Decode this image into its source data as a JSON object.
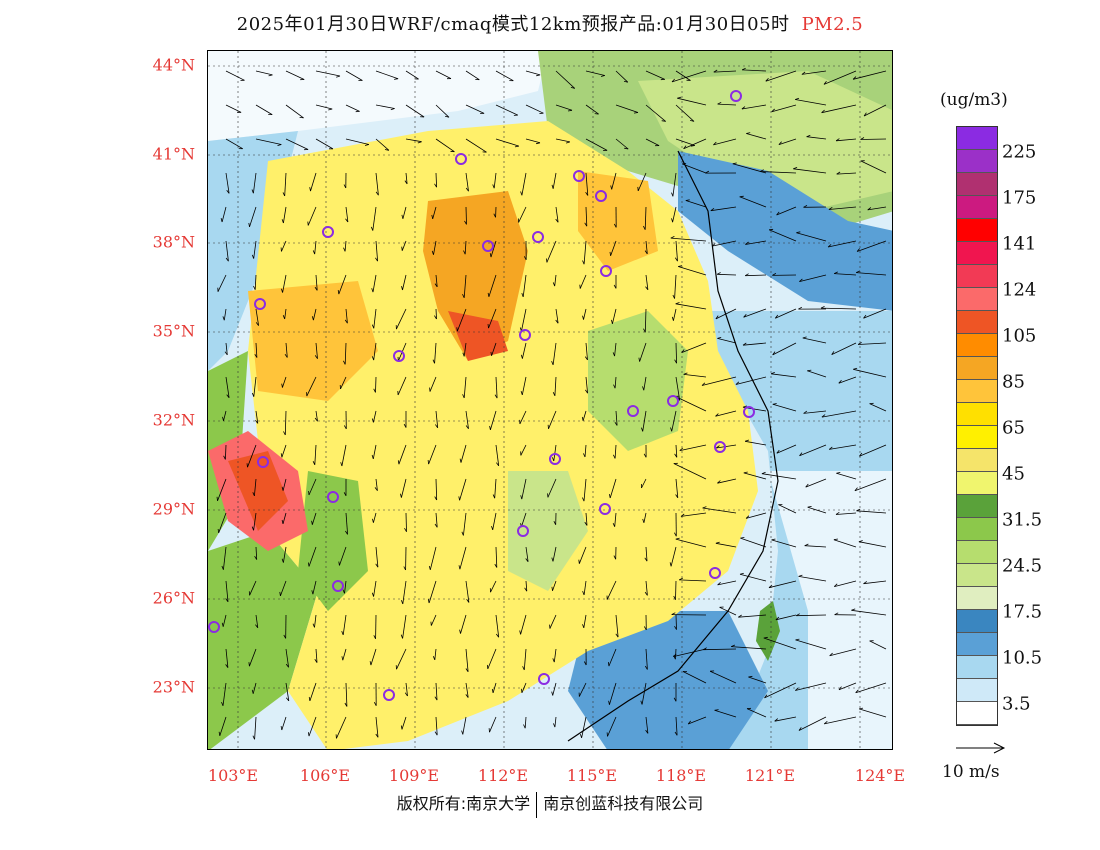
{
  "title": {
    "main": "2025年01月30日WRF/cmaq模式12km预报产品:01月30日05时",
    "pollutant": "PM2.5"
  },
  "map": {
    "lat_labels": [
      "44°N",
      "41°N",
      "38°N",
      "35°N",
      "32°N",
      "29°N",
      "26°N",
      "23°N"
    ],
    "lon_labels": [
      "103°E",
      "106°E",
      "109°E",
      "112°E",
      "115°E",
      "118°E",
      "121°E",
      "124°E"
    ],
    "station_marker": "purple-circle",
    "wind_arrow_color": "#000000"
  },
  "colorbar": {
    "unit": "(ug/m3)",
    "levels_top_to_bottom": [
      {
        "color": "#8b2be2"
      },
      {
        "color": "#9b30c8"
      },
      {
        "color": "#b03070"
      },
      {
        "color": "#cc1a80"
      },
      {
        "color": "#ff0000"
      },
      {
        "color": "#f0154f"
      },
      {
        "color": "#f23a55"
      },
      {
        "color": "#fb6a6a"
      },
      {
        "color": "#ee5525"
      },
      {
        "color": "#ff8c00"
      },
      {
        "color": "#f5a623"
      },
      {
        "color": "#ffc43a"
      },
      {
        "color": "#ffe000"
      },
      {
        "color": "#fff000"
      },
      {
        "color": "#f5e46a"
      },
      {
        "color": "#f0f56e"
      },
      {
        "color": "#5aa23a"
      },
      {
        "color": "#8cc84b"
      },
      {
        "color": "#b6dd6e"
      },
      {
        "color": "#c9e58a"
      },
      {
        "color": "#e0eec0"
      },
      {
        "color": "#3a86c0"
      },
      {
        "color": "#5aa0d6"
      },
      {
        "color": "#a8d8f0"
      },
      {
        "color": "#cfe9f8"
      },
      {
        "color": "#ffffff"
      }
    ],
    "labels": [
      "225",
      "175",
      "141",
      "124",
      "105",
      "85",
      "65",
      "45",
      "31.5",
      "24.5",
      "17.5",
      "10.5",
      "3.5"
    ]
  },
  "wind_key": {
    "label": "10 m/s"
  },
  "footer": {
    "left": "版权所有:南京大学",
    "right": "南京创蓝科技有限公司"
  }
}
